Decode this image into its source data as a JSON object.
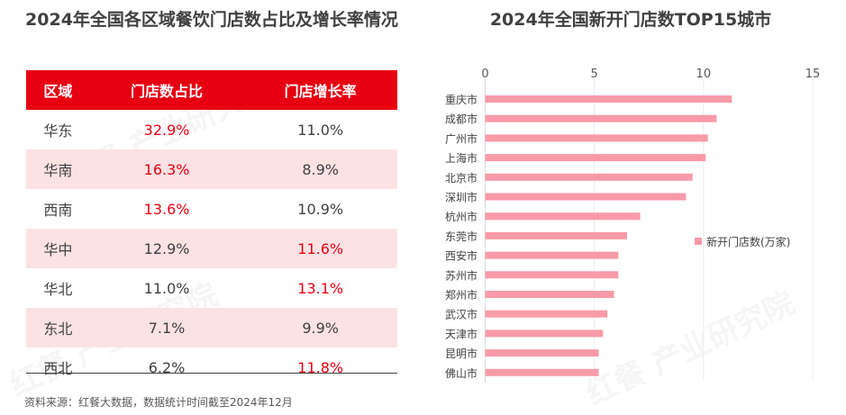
{
  "left": {
    "title": "2024年全国各区域餐饮门店数占比及增长率情况",
    "headers": [
      "区域",
      "门店数占比",
      "门店增长率"
    ],
    "rows": [
      {
        "region": "华东",
        "share": "32.9%",
        "growth": "11.0%",
        "share_red": true,
        "growth_red": false
      },
      {
        "region": "华南",
        "share": "16.3%",
        "growth": "8.9%",
        "share_red": true,
        "growth_red": false
      },
      {
        "region": "西南",
        "share": "13.6%",
        "growth": "10.9%",
        "share_red": true,
        "growth_red": false
      },
      {
        "region": "华中",
        "share": "12.9%",
        "growth": "11.6%",
        "share_red": false,
        "growth_red": true
      },
      {
        "region": "华北",
        "share": "11.0%",
        "growth": "13.1%",
        "share_red": false,
        "growth_red": true
      },
      {
        "region": "东北",
        "share": "7.1%",
        "growth": "9.9%",
        "share_red": false,
        "growth_red": false
      },
      {
        "region": "西北",
        "share": "6.2%",
        "growth": "11.8%",
        "share_red": false,
        "growth_red": true
      }
    ],
    "colors": {
      "header": "#e60012",
      "highlight": "#e60012",
      "stripe": "#fde2e4"
    }
  },
  "source": "资料来源：红餐大数据，数据统计时间截至2024年12月",
  "watermark": "红餐产业研究院",
  "chart_data": {
    "type": "bar",
    "orientation": "horizontal",
    "title": "2024年全国新开门店数TOP15城市",
    "categories": [
      "重庆市",
      "成都市",
      "广州市",
      "上海市",
      "北京市",
      "深圳市",
      "杭州市",
      "东莞市",
      "西安市",
      "苏州市",
      "郑州市",
      "武汉市",
      "天津市",
      "昆明市",
      "佛山市"
    ],
    "series": [
      {
        "name": "新开门店数(万家)",
        "values": [
          11.3,
          10.6,
          10.2,
          10.1,
          9.5,
          9.2,
          7.1,
          6.5,
          6.1,
          6.1,
          5.9,
          5.6,
          5.4,
          5.2,
          5.2
        ],
        "color": "#f99aa8"
      }
    ],
    "xlim": [
      0,
      15
    ],
    "xticks": [
      0,
      5,
      10,
      15
    ],
    "xaxis_position": "top",
    "grid": true,
    "legend_position": "right"
  }
}
